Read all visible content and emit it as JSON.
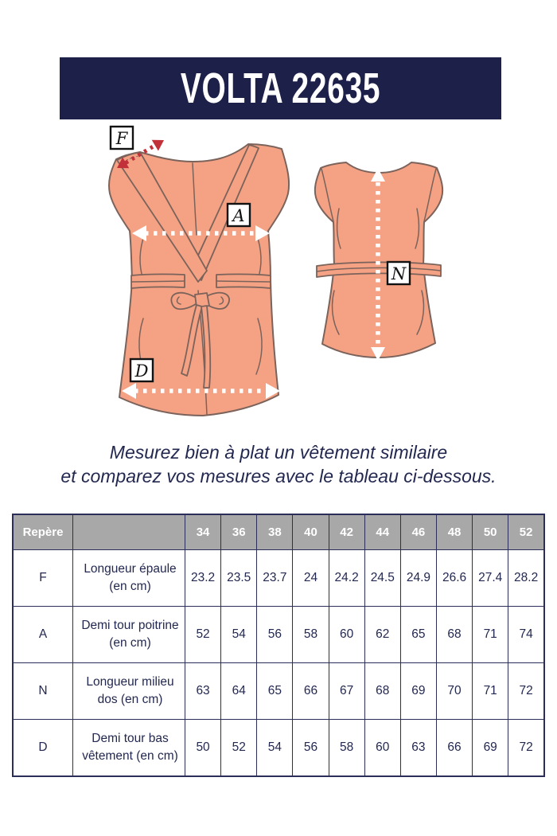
{
  "banner": {
    "title": "VOLTA 22635"
  },
  "diagram": {
    "measure_labels": {
      "f": "F",
      "a": "A",
      "n": "N",
      "d": "D"
    }
  },
  "instructions": {
    "line1": "Mesurez bien à plat un vêtement similaire",
    "line2": "et comparez vos mesures avec le tableau ci-dessous."
  },
  "size_table": {
    "corner_label": "Repère",
    "sizes": [
      "34",
      "36",
      "38",
      "40",
      "42",
      "44",
      "46",
      "48",
      "50",
      "52"
    ],
    "rows": [
      {
        "code": "F",
        "label": "Longueur épaule (en cm)",
        "values": [
          "23.2",
          "23.5",
          "23.7",
          "24",
          "24.2",
          "24.5",
          "24.9",
          "26.6",
          "27.4",
          "28.2"
        ]
      },
      {
        "code": "A",
        "label": "Demi tour poitrine (en cm)",
        "values": [
          "52",
          "54",
          "56",
          "58",
          "60",
          "62",
          "65",
          "68",
          "71",
          "74"
        ]
      },
      {
        "code": "N",
        "label": "Longueur milieu dos (en cm)",
        "values": [
          "63",
          "64",
          "65",
          "66",
          "67",
          "68",
          "69",
          "70",
          "71",
          "72"
        ]
      },
      {
        "code": "D",
        "label": "Demi tour bas vêtement (en cm)",
        "values": [
          "50",
          "52",
          "54",
          "56",
          "58",
          "60",
          "63",
          "66",
          "69",
          "72"
        ]
      }
    ]
  },
  "colors": {
    "banner-navy": "#1d2048",
    "text-navy": "#232850",
    "table-border": "#2b2e58",
    "header-gray": "#a8a8a8",
    "garment-salmon": "#f5a284",
    "garment-outline": "#7b635b",
    "arrow-red": "#c23039"
  }
}
